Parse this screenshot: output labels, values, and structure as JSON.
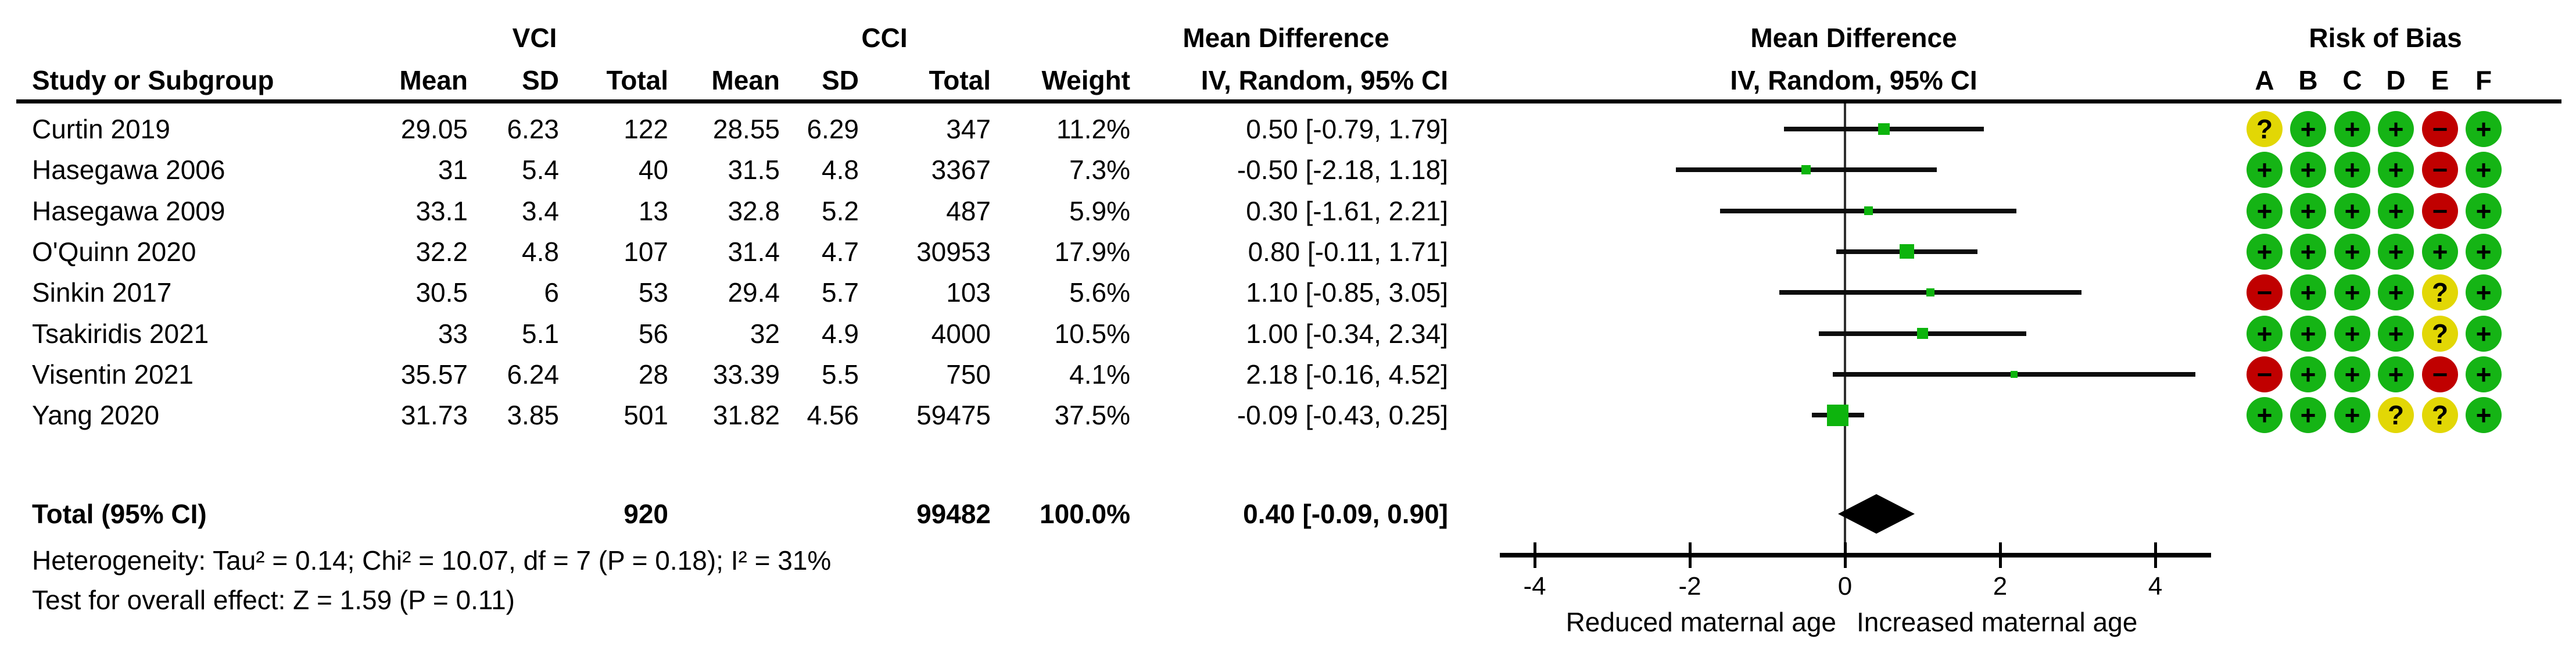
{
  "header": {
    "group_vci": "VCI",
    "group_cci": "CCI",
    "col_study": "Study or Subgroup",
    "col_mean": "Mean",
    "col_sd": "SD",
    "col_total": "Total",
    "col_weight": "Weight",
    "md_title_text_col": "Mean Difference",
    "md_sub_text_col": "IV, Random, 95% CI",
    "md_title_plot_col": "Mean Difference",
    "md_sub_plot_col": "IV, Random, 95% CI",
    "rob_title": "Risk of Bias",
    "rob_cols": [
      "A",
      "B",
      "C",
      "D",
      "E",
      "F"
    ]
  },
  "studies": [
    {
      "name": "Curtin 2019",
      "mean1": "29.05",
      "sd1": "6.23",
      "total1": "122",
      "mean2": "28.55",
      "sd2": "6.29",
      "total2": "347",
      "weight": "11.2%",
      "ci": "0.50 [-0.79, 1.79]",
      "rob": [
        "?",
        "+",
        "+",
        "+",
        "-",
        "+"
      ]
    },
    {
      "name": "Hasegawa 2006",
      "mean1": "31",
      "sd1": "5.4",
      "total1": "40",
      "mean2": "31.5",
      "sd2": "4.8",
      "total2": "3367",
      "weight": "7.3%",
      "ci": "-0.50 [-2.18, 1.18]",
      "rob": [
        "+",
        "+",
        "+",
        "+",
        "-",
        "+"
      ]
    },
    {
      "name": "Hasegawa 2009",
      "mean1": "33.1",
      "sd1": "3.4",
      "total1": "13",
      "mean2": "32.8",
      "sd2": "5.2",
      "total2": "487",
      "weight": "5.9%",
      "ci": "0.30 [-1.61, 2.21]",
      "rob": [
        "+",
        "+",
        "+",
        "+",
        "-",
        "+"
      ]
    },
    {
      "name": "O'Quinn 2020",
      "mean1": "32.2",
      "sd1": "4.8",
      "total1": "107",
      "mean2": "31.4",
      "sd2": "4.7",
      "total2": "30953",
      "weight": "17.9%",
      "ci": "0.80 [-0.11, 1.71]",
      "rob": [
        "+",
        "+",
        "+",
        "+",
        "+",
        "+"
      ]
    },
    {
      "name": "Sinkin 2017",
      "mean1": "30.5",
      "sd1": "6",
      "total1": "53",
      "mean2": "29.4",
      "sd2": "5.7",
      "total2": "103",
      "weight": "5.6%",
      "ci": "1.10 [-0.85, 3.05]",
      "rob": [
        "-",
        "+",
        "+",
        "+",
        "?",
        "+"
      ]
    },
    {
      "name": "Tsakiridis 2021",
      "mean1": "33",
      "sd1": "5.1",
      "total1": "56",
      "mean2": "32",
      "sd2": "4.9",
      "total2": "4000",
      "weight": "10.5%",
      "ci": "1.00 [-0.34, 2.34]",
      "rob": [
        "+",
        "+",
        "+",
        "+",
        "?",
        "+"
      ]
    },
    {
      "name": "Visentin 2021",
      "mean1": "35.57",
      "sd1": "6.24",
      "total1": "28",
      "mean2": "33.39",
      "sd2": "5.5",
      "total2": "750",
      "weight": "4.1%",
      "ci": "2.18 [-0.16, 4.52]",
      "rob": [
        "-",
        "+",
        "+",
        "+",
        "-",
        "+"
      ]
    },
    {
      "name": "Yang 2020",
      "mean1": "31.73",
      "sd1": "3.85",
      "total1": "501",
      "mean2": "31.82",
      "sd2": "4.56",
      "total2": "59475",
      "weight": "37.5%",
      "ci": "-0.09 [-0.43, 0.25]",
      "rob": [
        "+",
        "+",
        "+",
        "?",
        "?",
        "+"
      ]
    }
  ],
  "total": {
    "label": "Total (95% CI)",
    "total1": "920",
    "total2": "99482",
    "weight": "100.0%",
    "ci": "0.40 [-0.09, 0.90]"
  },
  "footer": {
    "heterogeneity": "Heterogeneity: Tau² = 0.14; Chi² = 10.07, df = 7 (P = 0.18); I² = 31%",
    "overall_effect": "Test for overall effect: Z = 1.59 (P = 0.11)"
  },
  "axis": {
    "ticks": [
      -4,
      -2,
      0,
      2,
      4
    ],
    "label_left": "Reduced maternal age",
    "label_right": "Increased maternal age"
  },
  "colors": {
    "rob_green": "#15b415",
    "rob_red": "#c00000",
    "rob_yellow": "#e2d705",
    "square_green": "#0db40d",
    "ci_black": "#0d0d0d",
    "diamond_black": "#000000"
  },
  "chart_data": {
    "type": "scatter",
    "subtype": "forest-plot",
    "title": "Mean Difference IV, Random, 95% CI",
    "effect_measure": "Mean Difference (IV, Random, 95% CI)",
    "xlabel_left": "Reduced maternal age",
    "xlabel_right": "Increased maternal age",
    "xlim": [
      -4.5,
      4.7
    ],
    "x_ticks": [
      -4,
      -2,
      0,
      2,
      4
    ],
    "grid": false,
    "points": [
      {
        "study": "Curtin 2019",
        "md": 0.5,
        "ci_low": -0.79,
        "ci_high": 1.79,
        "weight_pct": 11.2
      },
      {
        "study": "Hasegawa 2006",
        "md": -0.5,
        "ci_low": -2.18,
        "ci_high": 1.18,
        "weight_pct": 7.3
      },
      {
        "study": "Hasegawa 2009",
        "md": 0.3,
        "ci_low": -1.61,
        "ci_high": 2.21,
        "weight_pct": 5.9
      },
      {
        "study": "O'Quinn 2020",
        "md": 0.8,
        "ci_low": -0.11,
        "ci_high": 1.71,
        "weight_pct": 17.9
      },
      {
        "study": "Sinkin 2017",
        "md": 1.1,
        "ci_low": -0.85,
        "ci_high": 3.05,
        "weight_pct": 5.6
      },
      {
        "study": "Tsakiridis 2021",
        "md": 1.0,
        "ci_low": -0.34,
        "ci_high": 2.34,
        "weight_pct": 10.5
      },
      {
        "study": "Visentin 2021",
        "md": 2.18,
        "ci_low": -0.16,
        "ci_high": 4.52,
        "weight_pct": 4.1
      },
      {
        "study": "Yang 2020",
        "md": -0.09,
        "ci_low": -0.43,
        "ci_high": 0.25,
        "weight_pct": 37.5
      }
    ],
    "total": {
      "label": "Total (95% CI)",
      "md": 0.4,
      "ci_low": -0.09,
      "ci_high": 0.9,
      "weight_pct": 100.0
    }
  }
}
